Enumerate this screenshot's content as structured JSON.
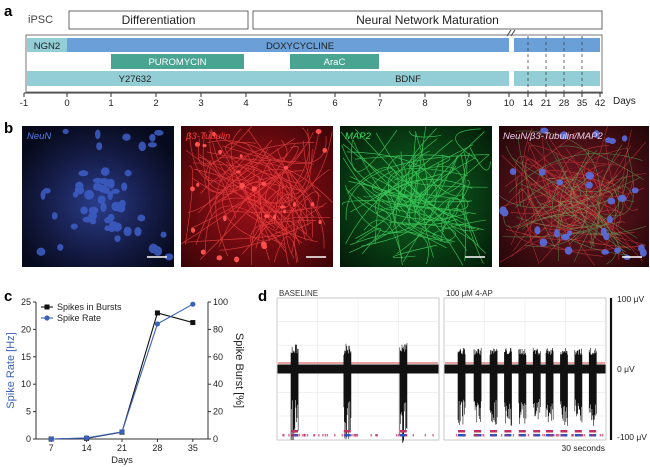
{
  "panel_labels": {
    "a": "a",
    "b": "b",
    "c": "c",
    "d": "d"
  },
  "timeline": {
    "ipsc_label": "iPSC",
    "phases": [
      "Differentiation",
      "Neural Network Maturation"
    ],
    "bars": {
      "ngn2": "NGN2",
      "doxycycline": "DOXYCYCLINE",
      "puromycin": "PUROMYCIN",
      "arac": "AraC",
      "y27632": "Y27632",
      "bdnf": "BDNF"
    },
    "ticks": [
      "-1",
      "0",
      "1",
      "2",
      "3",
      "4",
      "5",
      "6",
      "7",
      "8",
      "9",
      "10",
      "14",
      "21",
      "28",
      "35",
      "42"
    ],
    "days_label": "Days",
    "colors": {
      "blue": "#6a9fd8",
      "teal": "#4aa492",
      "cyan": "#93ced6"
    }
  },
  "images": [
    {
      "label": "NeuN",
      "color": "#5a7fe8"
    },
    {
      "label": "β3-Tubulin",
      "color": "#ff3b3b"
    },
    {
      "label": "MAP2",
      "color": "#42e06a"
    },
    {
      "label": "NeuN/β3-Tubulin/MAP2",
      "color": "#ffffff"
    }
  ],
  "chart_data": {
    "type": "line",
    "x": [
      7,
      14,
      21,
      28,
      35
    ],
    "xlabel": "Days",
    "ylabel": "Spike Rate [Hz]",
    "ylabel_right": "Spike Burst [%]",
    "ylim": [
      0,
      25
    ],
    "ylim_right": [
      0,
      100
    ],
    "yticks": [
      0,
      5,
      10,
      15,
      20,
      25
    ],
    "yticks_right": [
      0,
      20,
      40,
      60,
      80,
      100
    ],
    "legend": "top-left",
    "series": [
      {
        "name": "Spikes in Bursts",
        "axis": "right",
        "color": "#111111",
        "values": [
          0,
          0.5,
          5,
          92,
          85
        ]
      },
      {
        "name": "Spike Rate",
        "axis": "left",
        "color": "#3b62b8",
        "values": [
          0,
          0.2,
          1.3,
          21,
          24.6
        ]
      }
    ]
  },
  "recording": {
    "titles": [
      "BASELINE",
      "100 μM 4-AP"
    ],
    "scale_labels": [
      "100 μV",
      "0 μV",
      "-100 μV"
    ],
    "time_label": "30 seconds",
    "baseline_burst_positions": [
      0.1,
      0.43,
      0.78
    ],
    "ap_burst_positions": [
      0.1,
      0.2,
      0.3,
      0.39,
      0.48,
      0.57,
      0.65,
      0.74,
      0.83,
      0.92
    ]
  }
}
